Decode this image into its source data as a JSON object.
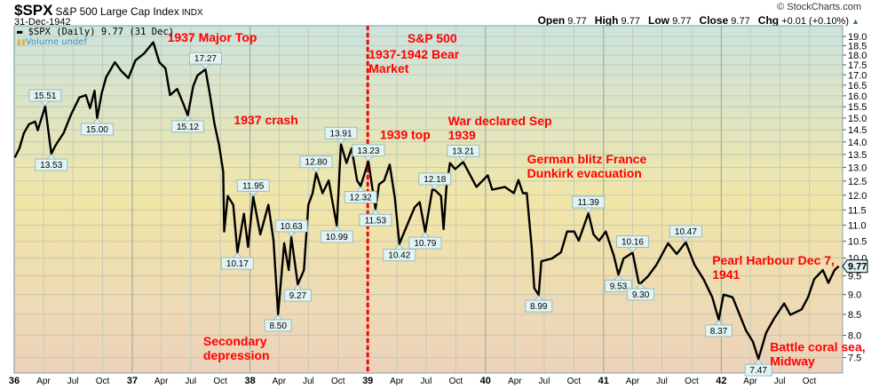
{
  "header": {
    "symbol": "$SPX",
    "name": "S&P 500 Large Cap Index",
    "exchange": "INDX",
    "date": "31-Dec-1942",
    "copyright": "© StockCharts.com",
    "ohlc": {
      "open_label": "Open",
      "open": "9.77",
      "high_label": "High",
      "high": "9.77",
      "low_label": "Low",
      "low": "9.77",
      "close_label": "Close",
      "close": "9.77",
      "chg_label": "Chg",
      "chg": "+0.01 (+0.10%)"
    }
  },
  "legend": {
    "series_label": "$SPX (Daily) 9.77 (31 Dec)",
    "volume_label": "Volume undef"
  },
  "colors": {
    "line": "#000000",
    "annotation": "#ff0000",
    "bg_top": "#cce3dd",
    "bg_mid": "#f1e6a8",
    "bg_bottom": "#ecd2bb",
    "callout_bg": "#e2f3f3",
    "callout_border": "#9bbcbc"
  },
  "chart_data": {
    "type": "line",
    "title": "",
    "xlabel": "",
    "ylabel": "",
    "y_scale": "log",
    "ylim": [
      7.17,
      19.6
    ],
    "xlim": [
      "1936-01-01",
      "1942-12-31"
    ],
    "grid": true,
    "y_axis_side": "right",
    "y_ticks": [
      "19.0",
      "18.5",
      "18.0",
      "17.5",
      "17.0",
      "16.5",
      "16.0",
      "15.5",
      "15.0",
      "14.5",
      "14.0",
      "13.5",
      "13.0",
      "12.5",
      "12.0",
      "11.5",
      "11.0",
      "10.5",
      "10.0",
      "9.5",
      "9.0",
      "8.5",
      "8.0",
      "7.5"
    ],
    "x_ticks": [
      {
        "label": "36",
        "date": "1936-01-01",
        "major": true
      },
      {
        "label": "Apr",
        "date": "1936-04-01"
      },
      {
        "label": "Jul",
        "date": "1936-07-01"
      },
      {
        "label": "Oct",
        "date": "1936-10-01"
      },
      {
        "label": "37",
        "date": "1937-01-01",
        "major": true
      },
      {
        "label": "Apr",
        "date": "1937-04-01"
      },
      {
        "label": "Jul",
        "date": "1937-07-01"
      },
      {
        "label": "Oct",
        "date": "1937-10-01"
      },
      {
        "label": "38",
        "date": "1938-01-01",
        "major": true
      },
      {
        "label": "Apr",
        "date": "1938-04-01"
      },
      {
        "label": "Jul",
        "date": "1938-07-01"
      },
      {
        "label": "Oct",
        "date": "1938-10-01"
      },
      {
        "label": "39",
        "date": "1939-01-01",
        "major": true
      },
      {
        "label": "Apr",
        "date": "1939-04-01"
      },
      {
        "label": "Jul",
        "date": "1939-07-01"
      },
      {
        "label": "Oct",
        "date": "1939-10-01"
      },
      {
        "label": "40",
        "date": "1940-01-01",
        "major": true
      },
      {
        "label": "Apr",
        "date": "1940-04-01"
      },
      {
        "label": "Jul",
        "date": "1940-07-01"
      },
      {
        "label": "Oct",
        "date": "1940-10-01"
      },
      {
        "label": "41",
        "date": "1941-01-01",
        "major": true
      },
      {
        "label": "Apr",
        "date": "1941-04-01"
      },
      {
        "label": "Jul",
        "date": "1941-07-01"
      },
      {
        "label": "Oct",
        "date": "1941-10-01"
      },
      {
        "label": "42",
        "date": "1942-01-01",
        "major": true
      },
      {
        "label": "Apr",
        "date": "1942-04-01"
      },
      {
        "label": "Jul",
        "date": "1942-07-01"
      },
      {
        "label": "Oct",
        "date": "1942-10-01"
      }
    ],
    "series": [
      {
        "points": [
          [
            "1936-01-03",
            13.38
          ],
          [
            "1936-01-17",
            13.74
          ],
          [
            "1936-01-31",
            14.36
          ],
          [
            "1936-02-16",
            14.74
          ],
          [
            "1936-03-06",
            14.85
          ],
          [
            "1936-03-14",
            14.48
          ],
          [
            "1936-04-06",
            15.51
          ],
          [
            "1936-04-25",
            13.53
          ],
          [
            "1936-05-09",
            13.88
          ],
          [
            "1936-06-02",
            14.36
          ],
          [
            "1936-06-24",
            15.12
          ],
          [
            "1936-07-21",
            15.92
          ],
          [
            "1936-08-10",
            16.03
          ],
          [
            "1936-08-23",
            15.44
          ],
          [
            "1936-09-06",
            16.24
          ],
          [
            "1936-09-14",
            15.0
          ],
          [
            "1936-09-28",
            16.11
          ],
          [
            "1936-10-12",
            16.88
          ],
          [
            "1936-11-08",
            17.63
          ],
          [
            "1936-11-28",
            17.19
          ],
          [
            "1936-12-20",
            16.84
          ],
          [
            "1937-01-11",
            17.73
          ],
          [
            "1937-02-07",
            18.09
          ],
          [
            "1937-03-07",
            18.68
          ],
          [
            "1937-03-26",
            17.63
          ],
          [
            "1937-04-14",
            17.32
          ],
          [
            "1937-04-28",
            16.03
          ],
          [
            "1937-05-20",
            16.32
          ],
          [
            "1937-06-08",
            15.64
          ],
          [
            "1937-06-22",
            15.12
          ],
          [
            "1937-07-09",
            16.45
          ],
          [
            "1937-07-22",
            16.97
          ],
          [
            "1937-08-16",
            17.27
          ],
          [
            "1937-08-30",
            16.03
          ],
          [
            "1937-09-13",
            14.74
          ],
          [
            "1937-09-27",
            13.88
          ],
          [
            "1937-10-10",
            12.84
          ],
          [
            "1937-10-13",
            10.8
          ],
          [
            "1937-10-24",
            11.97
          ],
          [
            "1937-11-10",
            11.67
          ],
          [
            "1937-11-23",
            10.17
          ],
          [
            "1937-12-13",
            11.37
          ],
          [
            "1937-12-26",
            10.33
          ],
          [
            "1938-01-11",
            11.95
          ],
          [
            "1938-02-02",
            10.71
          ],
          [
            "1938-02-27",
            11.67
          ],
          [
            "1938-03-15",
            10.52
          ],
          [
            "1938-03-29",
            8.5
          ],
          [
            "1938-04-17",
            10.44
          ],
          [
            "1938-05-01",
            9.66
          ],
          [
            "1938-05-09",
            10.63
          ],
          [
            "1938-05-29",
            9.27
          ],
          [
            "1938-06-17",
            9.66
          ],
          [
            "1938-07-01",
            11.67
          ],
          [
            "1938-07-14",
            12.07
          ],
          [
            "1938-07-25",
            12.8
          ],
          [
            "1938-08-14",
            12.07
          ],
          [
            "1938-09-02",
            12.52
          ],
          [
            "1938-09-27",
            10.99
          ],
          [
            "1938-10-10",
            13.91
          ],
          [
            "1938-10-27",
            13.17
          ],
          [
            "1938-11-12",
            13.74
          ],
          [
            "1938-11-29",
            12.52
          ],
          [
            "1938-12-10",
            12.32
          ],
          [
            "1939-01-03",
            13.23
          ],
          [
            "1939-01-25",
            11.53
          ],
          [
            "1939-02-05",
            12.38
          ],
          [
            "1939-02-21",
            12.52
          ],
          [
            "1939-03-10",
            13.11
          ],
          [
            "1939-03-26",
            11.91
          ],
          [
            "1939-04-09",
            10.42
          ],
          [
            "1939-04-28",
            10.88
          ],
          [
            "1939-05-26",
            11.58
          ],
          [
            "1939-06-11",
            11.76
          ],
          [
            "1939-06-28",
            10.79
          ],
          [
            "1939-07-20",
            12.19
          ],
          [
            "1939-07-28",
            12.18
          ],
          [
            "1939-08-16",
            11.97
          ],
          [
            "1939-08-24",
            10.88
          ],
          [
            "1939-09-02",
            12.29
          ],
          [
            "1939-09-13",
            13.17
          ],
          [
            "1939-09-29",
            12.94
          ],
          [
            "1939-10-24",
            13.21
          ],
          [
            "1939-11-15",
            12.71
          ],
          [
            "1939-12-04",
            12.29
          ],
          [
            "1940-01-08",
            12.71
          ],
          [
            "1940-01-22",
            12.19
          ],
          [
            "1940-03-01",
            12.29
          ],
          [
            "1940-03-29",
            12.07
          ],
          [
            "1940-04-12",
            12.54
          ],
          [
            "1940-04-26",
            12.07
          ],
          [
            "1940-05-08",
            12.07
          ],
          [
            "1940-05-23",
            10.33
          ],
          [
            "1940-05-31",
            9.17
          ],
          [
            "1940-06-14",
            8.99
          ],
          [
            "1940-06-22",
            9.91
          ],
          [
            "1940-07-25",
            9.99
          ],
          [
            "1940-08-22",
            10.17
          ],
          [
            "1940-09-10",
            10.8
          ],
          [
            "1940-10-02",
            10.8
          ],
          [
            "1940-10-16",
            10.52
          ],
          [
            "1940-11-15",
            11.39
          ],
          [
            "1940-12-01",
            10.71
          ],
          [
            "1940-12-18",
            10.52
          ],
          [
            "1941-01-08",
            10.8
          ],
          [
            "1941-02-02",
            10.07
          ],
          [
            "1941-02-16",
            9.53
          ],
          [
            "1941-03-04",
            9.99
          ],
          [
            "1941-04-01",
            10.16
          ],
          [
            "1941-04-20",
            9.31
          ],
          [
            "1941-04-26",
            9.3
          ],
          [
            "1941-05-18",
            9.48
          ],
          [
            "1941-06-14",
            9.81
          ],
          [
            "1941-07-20",
            10.44
          ],
          [
            "1941-08-16",
            10.12
          ],
          [
            "1941-09-13",
            10.47
          ],
          [
            "1941-10-10",
            9.81
          ],
          [
            "1941-11-07",
            9.41
          ],
          [
            "1941-12-04",
            8.93
          ],
          [
            "1941-12-24",
            8.37
          ],
          [
            "1942-01-08",
            9.0
          ],
          [
            "1942-02-05",
            8.93
          ],
          [
            "1942-02-27",
            8.49
          ],
          [
            "1942-03-18",
            8.12
          ],
          [
            "1942-04-09",
            7.85
          ],
          [
            "1942-04-26",
            7.47
          ],
          [
            "1942-05-20",
            8.06
          ],
          [
            "1942-06-14",
            8.4
          ],
          [
            "1942-07-15",
            8.77
          ],
          [
            "1942-08-03",
            8.49
          ],
          [
            "1942-09-07",
            8.62
          ],
          [
            "1942-09-27",
            8.93
          ],
          [
            "1942-10-16",
            9.41
          ],
          [
            "1942-11-12",
            9.66
          ],
          [
            "1942-11-29",
            9.31
          ],
          [
            "1942-12-18",
            9.66
          ],
          [
            "1942-12-31",
            9.77
          ]
        ]
      }
    ],
    "last_value_tag": "9.77",
    "callouts": [
      {
        "text": "15.51",
        "date": "1936-04-06",
        "value": 15.51,
        "side": "above"
      },
      {
        "text": "13.53",
        "date": "1936-04-25",
        "value": 13.53,
        "side": "below"
      },
      {
        "text": "15.00",
        "date": "1936-09-14",
        "value": 15.0,
        "side": "below"
      },
      {
        "text": "15.12",
        "date": "1937-06-22",
        "value": 15.12,
        "side": "below"
      },
      {
        "text": "17.27",
        "date": "1937-08-16",
        "value": 17.27,
        "side": "above"
      },
      {
        "text": "11.95",
        "date": "1938-01-11",
        "value": 11.95,
        "side": "above"
      },
      {
        "text": "10.17",
        "date": "1937-11-23",
        "value": 10.17,
        "side": "below"
      },
      {
        "text": "8.50",
        "date": "1938-03-29",
        "value": 8.5,
        "side": "below"
      },
      {
        "text": "10.63",
        "date": "1938-05-09",
        "value": 10.63,
        "side": "above"
      },
      {
        "text": "9.27",
        "date": "1938-05-29",
        "value": 9.27,
        "side": "below"
      },
      {
        "text": "12.80",
        "date": "1938-07-25",
        "value": 12.8,
        "side": "above"
      },
      {
        "text": "10.99",
        "date": "1938-09-27",
        "value": 10.99,
        "side": "below"
      },
      {
        "text": "13.91",
        "date": "1938-10-10",
        "value": 13.91,
        "side": "above"
      },
      {
        "text": "13.23",
        "date": "1939-01-03",
        "value": 13.23,
        "side": "above"
      },
      {
        "text": "12.32",
        "date": "1938-12-10",
        "value": 12.32,
        "side": "below"
      },
      {
        "text": "11.53",
        "date": "1939-01-25",
        "value": 11.53,
        "side": "below"
      },
      {
        "text": "10.42",
        "date": "1939-04-09",
        "value": 10.42,
        "side": "below"
      },
      {
        "text": "10.79",
        "date": "1939-06-28",
        "value": 10.79,
        "side": "below"
      },
      {
        "text": "12.18",
        "date": "1939-07-28",
        "value": 12.18,
        "side": "above"
      },
      {
        "text": "13.21",
        "date": "1939-10-24",
        "value": 13.21,
        "side": "above"
      },
      {
        "text": "8.99",
        "date": "1940-06-14",
        "value": 8.99,
        "side": "below"
      },
      {
        "text": "11.39",
        "date": "1940-11-15",
        "value": 11.39,
        "side": "above"
      },
      {
        "text": "9.53",
        "date": "1941-02-16",
        "value": 9.53,
        "side": "below"
      },
      {
        "text": "10.16",
        "date": "1941-04-01",
        "value": 10.16,
        "side": "above"
      },
      {
        "text": "9.30",
        "date": "1941-04-26",
        "value": 9.3,
        "side": "below"
      },
      {
        "text": "10.47",
        "date": "1941-09-13",
        "value": 10.47,
        "side": "above"
      },
      {
        "text": "8.37",
        "date": "1941-12-24",
        "value": 8.37,
        "side": "below"
      },
      {
        "text": "7.47",
        "date": "1942-04-26",
        "value": 7.47,
        "side": "below"
      }
    ],
    "annotations": [
      {
        "lines": [
          "1937 Major Top"
        ],
        "date": "1937-04-20",
        "value": 18.7
      },
      {
        "lines": [
          "1937 crash"
        ],
        "date": "1937-11-12",
        "value": 14.74
      },
      {
        "lines": [
          "Secondary",
          "depression"
        ],
        "date": "1937-08-09",
        "value": 7.77
      },
      {
        "lines": [
          "S&P 500"
        ],
        "date": "1939-05-04",
        "value": 18.66
      },
      {
        "lines": [
          "1937-1942 Bear",
          "Market"
        ],
        "date": "1939-01-04",
        "value": 17.81
      },
      {
        "lines": [
          "1939 top"
        ],
        "date": "1939-02-08",
        "value": 14.11
      },
      {
        "lines": [
          "War declared Sep",
          "1939"
        ],
        "date": "1939-09-07",
        "value": 14.7
      },
      {
        "lines": [
          "German blitz France",
          "Dunkirk evacuation"
        ],
        "date": "1940-05-09",
        "value": 13.15
      },
      {
        "lines": [
          "Pearl Harbour Dec 7,",
          "1941"
        ],
        "date": "1941-12-04",
        "value": 9.81
      },
      {
        "lines": [
          "Battle coral sea,",
          "Midway"
        ],
        "date": "1942-06-01",
        "value": 7.64
      }
    ],
    "marker_line": {
      "date": "1939-01-01",
      "style": "dashed",
      "color": "#ff0000"
    }
  }
}
